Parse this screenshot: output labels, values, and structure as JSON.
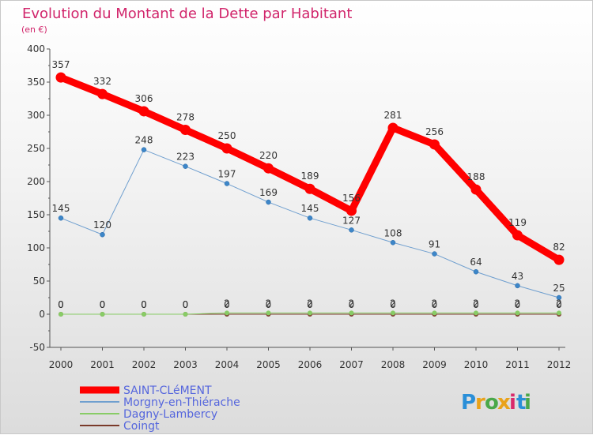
{
  "chart_data": {
    "type": "line",
    "title": "Evolution du Montant de la Dette par Habitant",
    "subtitle": "(en €)",
    "x": [
      "2000",
      "2001",
      "2002",
      "2003",
      "2004",
      "2005",
      "2006",
      "2007",
      "2008",
      "2009",
      "2010",
      "2011",
      "2012"
    ],
    "ylim": [
      -50,
      400
    ],
    "yticks": [
      -50,
      0,
      50,
      100,
      150,
      200,
      250,
      300,
      350,
      400
    ],
    "grid": false,
    "legend_position": "bottom-left",
    "series": [
      {
        "name": "SAINT-CLéMENT",
        "color": "#ff0000",
        "values": [
          357,
          332,
          306,
          278,
          250,
          220,
          189,
          156,
          281,
          256,
          188,
          119,
          82
        ],
        "labels": [
          "357",
          "332",
          "306",
          "278",
          "250",
          "220",
          "189",
          "156",
          "281",
          "256",
          "188",
          "119",
          "82"
        ]
      },
      {
        "name": "Morgny-en-Thiérache",
        "color": "#6f9fcf",
        "values": [
          145,
          120,
          248,
          223,
          197,
          169,
          145,
          127,
          108,
          91,
          64,
          43,
          25
        ],
        "labels": [
          "145",
          "120",
          "248",
          "223",
          "197",
          "169",
          "145",
          "127",
          "108",
          "91",
          "64",
          "43",
          "25"
        ]
      },
      {
        "name": "Dagny-Lambercy",
        "color": "#88cc66",
        "values": [
          0,
          0,
          0,
          0,
          2,
          2,
          2,
          2,
          2,
          2,
          2,
          2,
          2
        ],
        "labels": [
          "0",
          "0",
          "0",
          "0",
          "2",
          "2",
          "2",
          "2",
          "2",
          "2",
          "2",
          "2",
          "2"
        ]
      },
      {
        "name": "Coingt",
        "color": "#7a3a2a",
        "values": [
          0,
          0,
          0,
          0,
          0,
          0,
          0,
          0,
          0,
          0,
          0,
          0,
          0
        ],
        "labels": [
          "0",
          "0",
          "0",
          "0",
          "0",
          "0",
          "0",
          "0",
          "0",
          "0",
          "0",
          "0",
          "0"
        ]
      }
    ]
  },
  "brand": {
    "logo_text": "Proxiti",
    "letters": [
      "P",
      "r",
      "o",
      "x",
      "i",
      "t",
      "i"
    ],
    "letter_colors": [
      "#2a8fd8",
      "#e9a21a",
      "#4aa84a",
      "#e9a21a",
      "#d82a6b",
      "#2a8fd8",
      "#4aa84a"
    ]
  }
}
